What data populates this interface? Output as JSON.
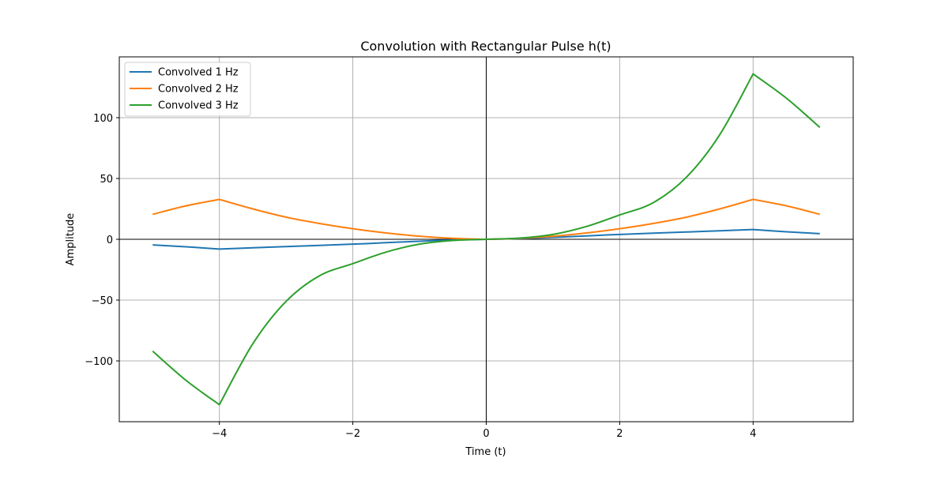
{
  "chart_data": {
    "type": "line",
    "title": "Convolution with Rectangular Pulse h(t)",
    "xlabel": "Time (t)",
    "ylabel": "Amplitude",
    "xlim": [
      -5.5,
      5.5
    ],
    "ylim": [
      -150,
      150
    ],
    "xticks": [
      -4,
      -2,
      0,
      2,
      4
    ],
    "xtick_labels": [
      "−4",
      "−2",
      "0",
      "2",
      "4"
    ],
    "yticks": [
      -100,
      -50,
      0,
      50,
      100
    ],
    "ytick_labels": [
      "−100",
      "−50",
      "0",
      "50",
      "100"
    ],
    "grid": true,
    "legend_position": "top-left",
    "x": [
      -5,
      -4.5,
      -4,
      -3.5,
      -3,
      -2.5,
      -2,
      -1.5,
      -1,
      -0.5,
      0,
      0.5,
      1,
      1.5,
      2,
      2.5,
      3,
      3.5,
      4,
      4.5,
      5
    ],
    "series": [
      {
        "name": "Convolved 1 Hz",
        "color": "#1f77b4",
        "values": [
          -4.6,
          -6.2,
          -8.0,
          -7.0,
          -6.0,
          -5.0,
          -4.0,
          -2.8,
          -1.6,
          -0.6,
          0.0,
          0.6,
          1.6,
          2.8,
          4.0,
          5.0,
          6.0,
          7.0,
          8.0,
          6.2,
          4.6
        ]
      },
      {
        "name": "Convolved 2 Hz",
        "color": "#ff7f0e",
        "values": [
          20.5,
          27.5,
          32.8,
          25.0,
          18.2,
          13.0,
          8.7,
          5.2,
          2.5,
          0.8,
          0.0,
          0.8,
          2.5,
          5.2,
          8.7,
          13.0,
          18.2,
          25.0,
          32.8,
          27.5,
          20.5
        ]
      },
      {
        "name": "Convolved 3 Hz",
        "color": "#2ca02c",
        "values": [
          -92.0,
          -116.0,
          -136.0,
          -86.0,
          -51.0,
          -30.0,
          -20.0,
          -10.5,
          -4.0,
          -1.0,
          0.0,
          1.0,
          4.0,
          10.5,
          20.0,
          30.0,
          51.0,
          86.0,
          136.0,
          116.0,
          92.0
        ]
      }
    ]
  }
}
